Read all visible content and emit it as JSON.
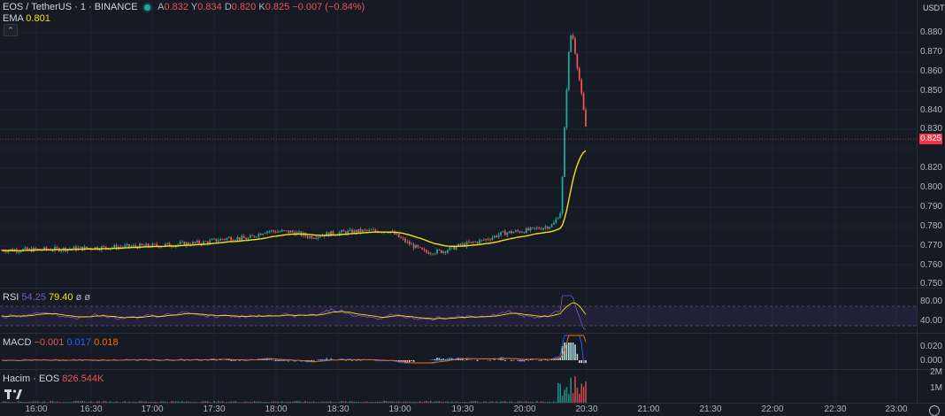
{
  "header": {
    "symbol": "EOS / TetherUS · 1 · BINANCE",
    "o_label": "A",
    "o_value": "0.832",
    "h_label": "Y",
    "h_value": "0.834",
    "l_label": "D",
    "l_value": "0.820",
    "c_label": "K",
    "c_value": "0.825",
    "change": "−0.007 (−0.84%)"
  },
  "ema": {
    "label": "EMA",
    "value": "0.801"
  },
  "rsi": {
    "label": "RSI",
    "v1": "54.25",
    "v2": "79.40",
    "v3": "ø ø"
  },
  "macd": {
    "label": "MACD",
    "v1": "−0.001",
    "v2": "0.017",
    "v3": "0.018"
  },
  "volume": {
    "label": "Hacim · EOS",
    "value": "826.544K"
  },
  "currency": "USDT",
  "last_price": "0.825",
  "price_ticks": [
    "0.880",
    "0.870",
    "0.860",
    "0.850",
    "0.840",
    "0.830",
    "0.820",
    "0.810",
    "0.800",
    "0.790",
    "0.780",
    "0.770",
    "0.760",
    "0.750"
  ],
  "rsi_ticks": [
    "80.00",
    "60.00",
    "40.00"
  ],
  "macd_ticks": [
    "0.020",
    "0.000"
  ],
  "volume_ticks": [
    "2M",
    "1M"
  ],
  "time_ticks": [
    "16:00",
    "16:30",
    "17:00",
    "17:30",
    "18:00",
    "18:30",
    "19:00",
    "19:30",
    "20:00",
    "20:30",
    "21:00",
    "21:30",
    "22:00",
    "22:30",
    "23:00"
  ],
  "colors": {
    "up": "#26a69a",
    "down": "#ef5350",
    "ema": "#f2e30e",
    "rsi": "#7e57c2",
    "macd": "#2962ff",
    "signal": "#ff6d00",
    "bg": "#161a25"
  },
  "icons": {
    "logo": "tradingview-logo-icon",
    "settings": "settings-gear-icon",
    "collapse": "chevron-up-icon"
  }
}
